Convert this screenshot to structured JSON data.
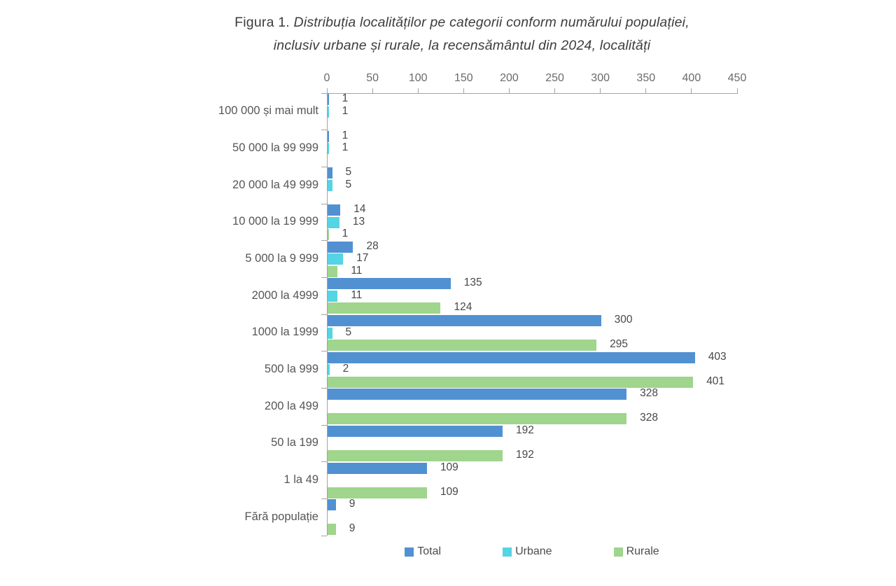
{
  "title": {
    "prefix": "Figura 1. ",
    "line1_italic": "Distribuția localităților pe categorii conform numărului populației,",
    "line2_italic": "inclusiv urbane și rurale, la recensământul din 2024, localități"
  },
  "chart_data": {
    "type": "bar",
    "orientation": "horizontal",
    "title": "Figura 1. Distribuția localităților pe categorii conform numărului populației, inclusiv urbane și rurale, la recensământul din 2024, localități",
    "categories": [
      "100 000 și mai mult",
      "50 000 la 99 999",
      "20 000 la 49 999",
      "10 000 la 19 999",
      "5 000 la 9 999",
      "2000 la 4999",
      "1000 la 1999",
      "500 la 999",
      "200 la 499",
      "50 la 199",
      "1 la 49",
      "Fără populație"
    ],
    "series": [
      {
        "name": "Total",
        "color": "#5191d2",
        "values": [
          1,
          1,
          5,
          14,
          28,
          135,
          300,
          403,
          328,
          192,
          109,
          9
        ]
      },
      {
        "name": "Urbane",
        "color": "#55d4e4",
        "values": [
          1,
          1,
          5,
          13,
          17,
          11,
          5,
          2,
          null,
          null,
          null,
          null
        ]
      },
      {
        "name": "Rurale",
        "color": "#9fd58c",
        "values": [
          null,
          null,
          null,
          1,
          11,
          124,
          295,
          401,
          328,
          192,
          109,
          9
        ]
      }
    ],
    "x_ticks": [
      0,
      50,
      100,
      150,
      200,
      250,
      300,
      350,
      400,
      450
    ],
    "xlim": [
      0,
      450
    ],
    "xlabel": "",
    "ylabel": "",
    "grid": false,
    "legend_position": "bottom",
    "axis_position": "top"
  }
}
